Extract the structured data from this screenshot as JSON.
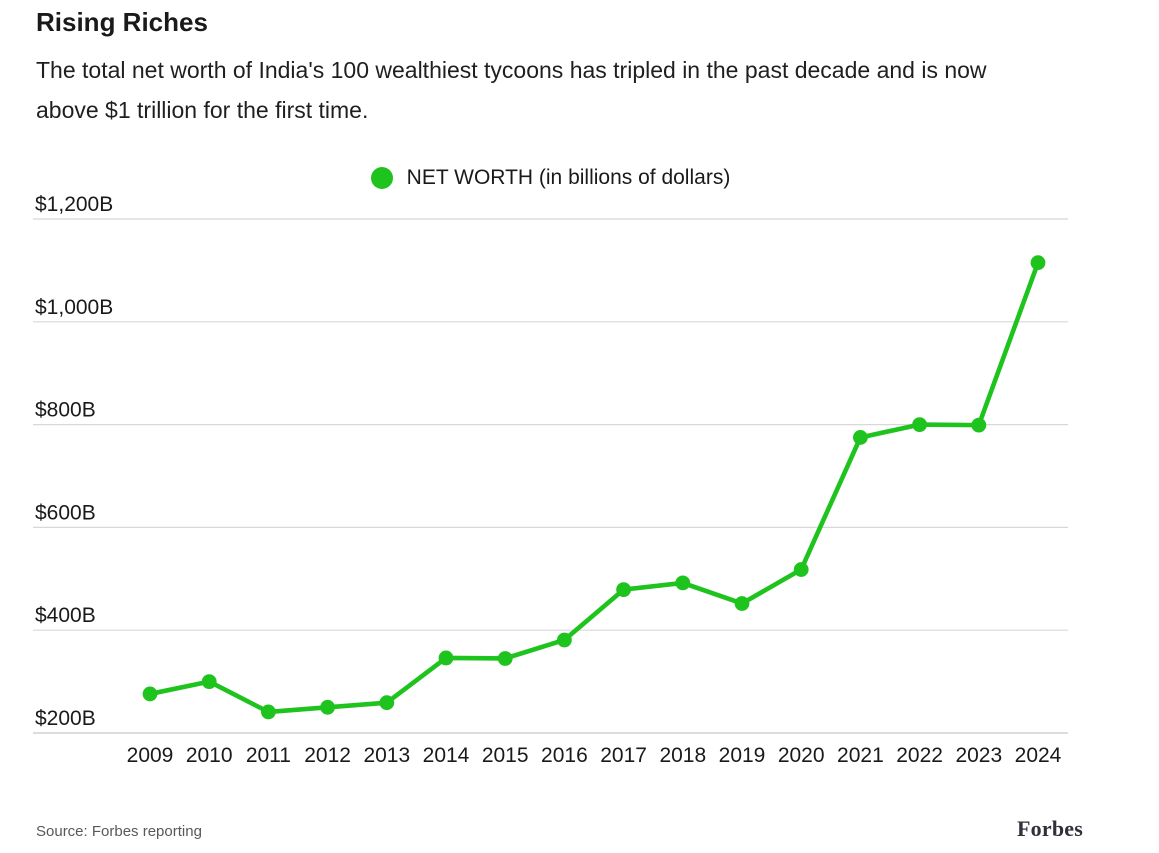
{
  "header": {
    "title": "Rising Riches",
    "subtitle": "The total net worth of India's 100 wealthiest tycoons has tripled in the past decade and is now above $1 trillion for the first time."
  },
  "legend": {
    "label": "NET WORTH (in billions of dollars)"
  },
  "footer": {
    "source": "Source: Forbes reporting",
    "brand": "Forbes"
  },
  "colors": {
    "accent_green": "#1ec31e",
    "gridline": "#d8d8d8",
    "baseline": "#c6c6c6",
    "text": "#1a1a1a",
    "muted": "#595959"
  },
  "chart_data": {
    "type": "line",
    "title": "Rising Riches",
    "subtitle": "The total net worth of India's 100 wealthiest tycoons has tripled in the past decade and is now above $1 trillion for the first time.",
    "categories": [
      "2009",
      "2010",
      "2011",
      "2012",
      "2013",
      "2014",
      "2015",
      "2016",
      "2017",
      "2018",
      "2019",
      "2020",
      "2021",
      "2022",
      "2023",
      "2024"
    ],
    "series": [
      {
        "name": "NET WORTH (in billions of dollars)",
        "values": [
          276,
          300,
          241,
          250,
          259,
          346,
          345,
          381,
          479,
          492,
          452,
          518,
          775,
          800,
          799,
          1115
        ]
      }
    ],
    "units": "billions of dollars",
    "xlabel": "",
    "ylabel": "",
    "ylim": [
      200,
      1200
    ],
    "yticks": [
      200,
      400,
      600,
      800,
      1000,
      1200
    ],
    "ytick_labels": [
      "$200B",
      "$400B",
      "$600B",
      "$800B",
      "$1,000B",
      "$1,200B"
    ],
    "grid": true,
    "legend_position": "top-center",
    "marker": "circle",
    "line_color": "#1ec31e"
  }
}
